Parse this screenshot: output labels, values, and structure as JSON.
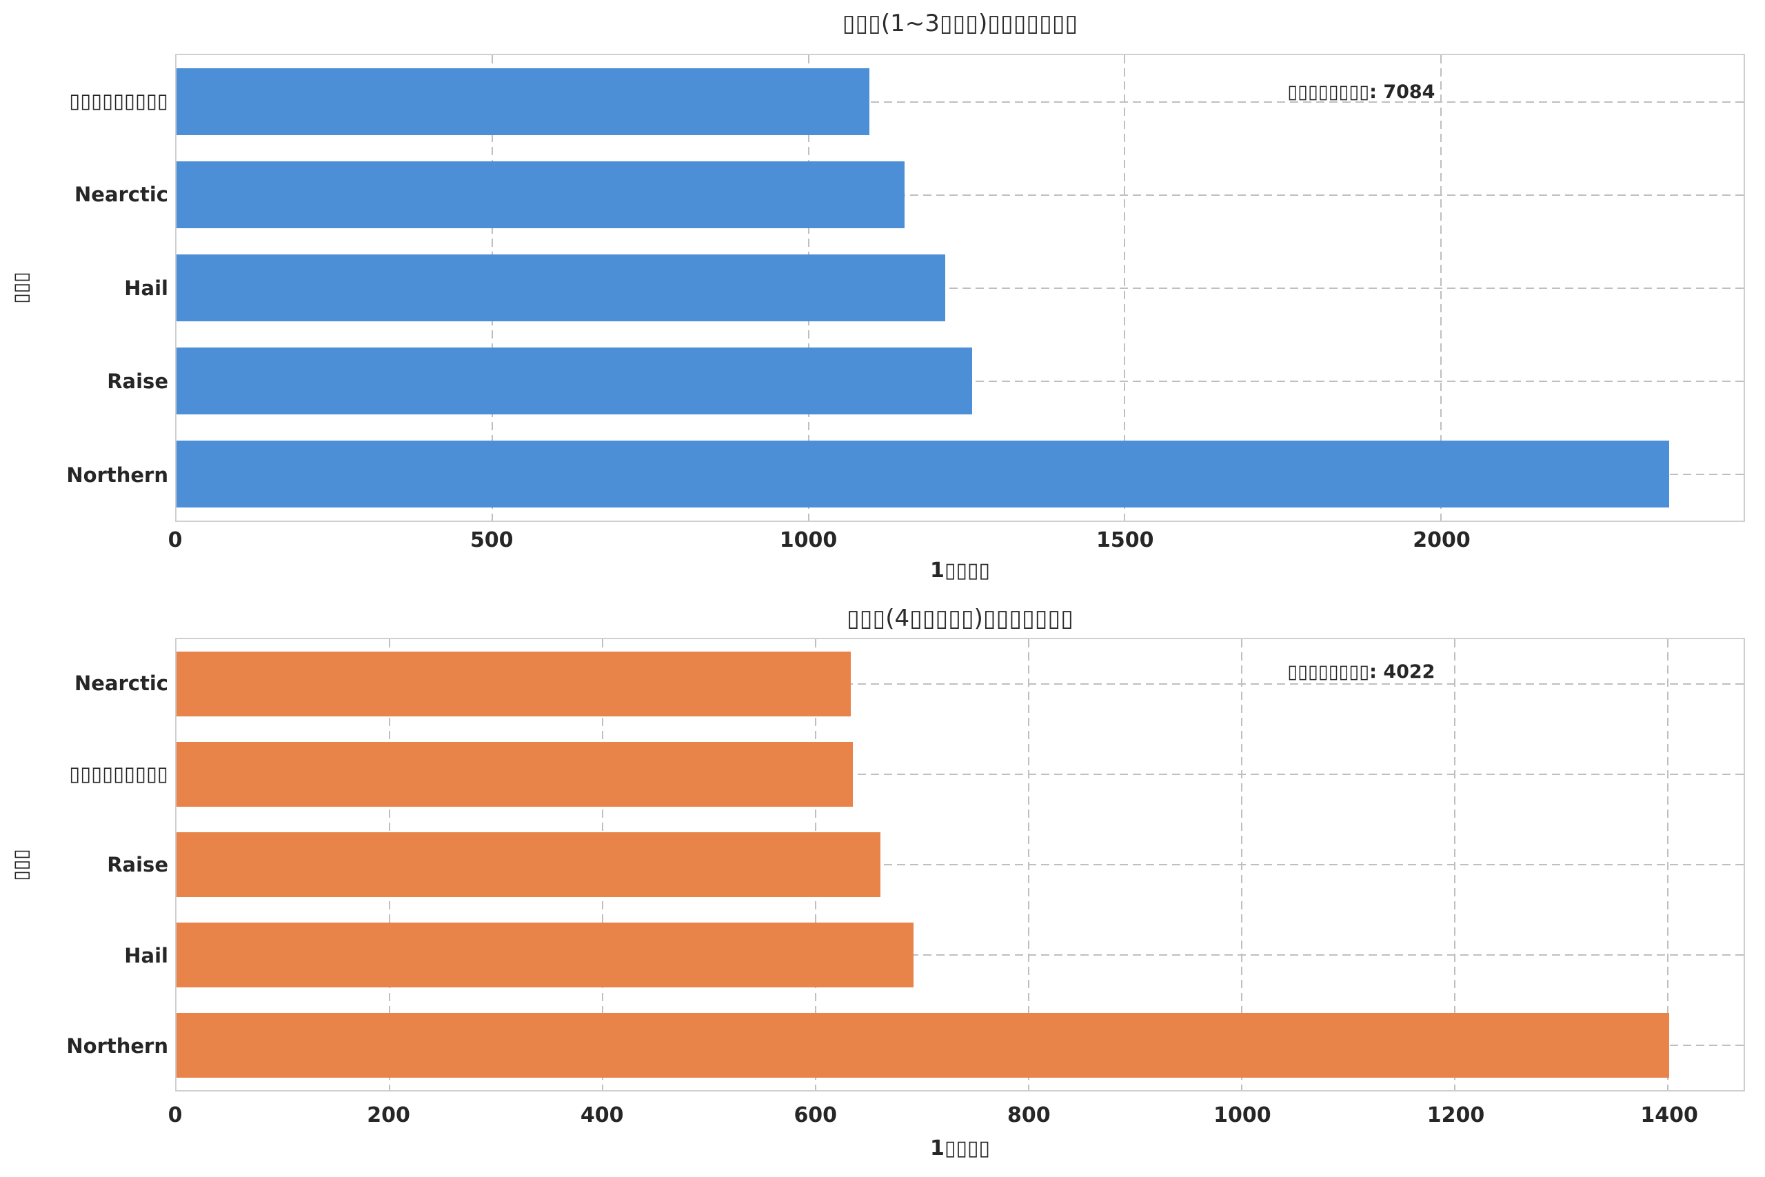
{
  "figure": {
    "background": "#ffffff",
    "text_color": "#262626",
    "grid_color": "#bfbfbf",
    "frame_color": "#cfcfcf"
  },
  "chart_data": [
    {
      "type": "bar",
      "orientation": "horizontal",
      "title": "▯▯▯(1~3▯▯▯)▯▯▯▯▯▯▯",
      "xlabel": "1▯▯▯▯",
      "ylabel": "▯▯▯",
      "annotation": "▯▯▯▯▯▯▯▯: 7084",
      "annotation_total": 7084,
      "categories": [
        "▯▯▯▯▯▯▯▯▯",
        "Nearctic",
        "Hail",
        "Raise",
        "Northern"
      ],
      "values": [
        1096,
        1152,
        1216,
        1259,
        2361
      ],
      "xticks": [
        0,
        500,
        1000,
        1500,
        2000
      ],
      "xlim": [
        0,
        2479
      ],
      "bar_color": "#4C8FD6",
      "grid": true,
      "grid_style": "dashed",
      "legend": false
    },
    {
      "type": "bar",
      "orientation": "horizontal",
      "title": "▯▯▯(4▯▯▯▯▯)▯▯▯▯▯▯▯",
      "xlabel": "1▯▯▯▯",
      "ylabel": "▯▯▯",
      "annotation": "▯▯▯▯▯▯▯▯: 4022",
      "annotation_total": 4022,
      "categories": [
        "Nearctic",
        "▯▯▯▯▯▯▯▯▯",
        "Raise",
        "Hail",
        "Northern"
      ],
      "values": [
        633,
        635,
        661,
        692,
        1401
      ],
      "xticks": [
        0,
        200,
        400,
        600,
        800,
        1000,
        1200,
        1400
      ],
      "xlim": [
        0,
        1471
      ],
      "bar_color": "#E8834A",
      "grid": true,
      "grid_style": "dashed",
      "legend": false
    }
  ]
}
